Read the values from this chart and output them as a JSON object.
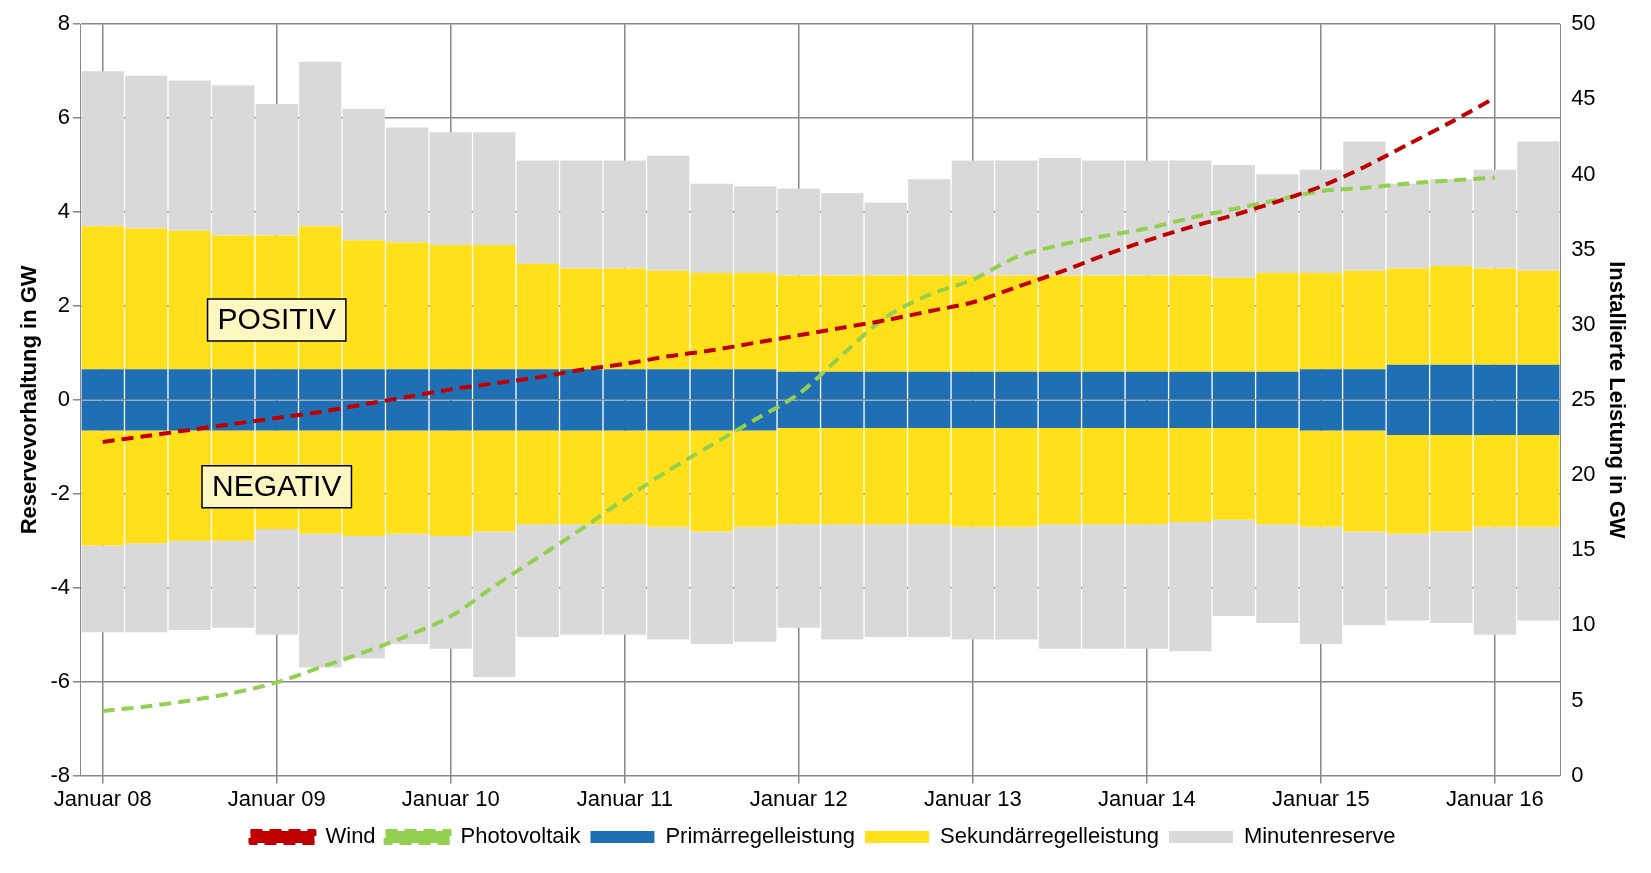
{
  "chart_data": {
    "type": "bar",
    "stacked": true,
    "xlabel": null,
    "ylabel": "Reservevorhaltung in GW",
    "y2label": "Installierte Leistung in GW",
    "categories": [
      "Januar 08",
      null,
      null,
      null,
      "Januar 09",
      null,
      null,
      null,
      "Januar 10",
      null,
      null,
      null,
      "Januar 11",
      null,
      null,
      null,
      "Januar 12",
      null,
      null,
      null,
      "Januar 13",
      null,
      null,
      null,
      "Januar 14",
      null,
      null,
      null,
      "Januar 15",
      null,
      null,
      null,
      "Januar 16",
      null
    ],
    "series": [
      {
        "name": "Primärregelleistung",
        "color": "#1f6fb4",
        "values": [
          0.65,
          0.65,
          0.65,
          0.65,
          0.65,
          0.65,
          0.65,
          0.65,
          0.65,
          0.65,
          0.65,
          0.65,
          0.65,
          0.65,
          0.65,
          0.65,
          0.6,
          0.6,
          0.6,
          0.6,
          0.6,
          0.6,
          0.6,
          0.6,
          0.6,
          0.6,
          0.6,
          0.6,
          0.65,
          0.65,
          0.75,
          0.75,
          0.75,
          0.75
        ]
      },
      {
        "name": "Sekundärregelleistung",
        "color": "#ffe01a",
        "values": [
          3.05,
          3.0,
          2.95,
          2.85,
          2.85,
          3.05,
          2.75,
          2.7,
          2.65,
          2.65,
          2.25,
          2.15,
          2.15,
          2.1,
          2.05,
          2.05,
          2.05,
          2.05,
          2.05,
          2.05,
          2.05,
          2.05,
          2.05,
          2.05,
          2.05,
          2.05,
          2.0,
          2.1,
          2.05,
          2.1,
          2.05,
          2.1,
          2.05,
          2.0
        ]
      },
      {
        "name": "Minutenreserve",
        "color": "#d9d9d9",
        "values": [
          3.3,
          3.25,
          3.2,
          3.2,
          2.8,
          3.5,
          2.8,
          2.45,
          2.4,
          2.4,
          2.2,
          2.3,
          2.3,
          2.45,
          1.9,
          1.85,
          1.85,
          1.75,
          1.55,
          2.05,
          2.45,
          2.45,
          2.5,
          2.45,
          2.45,
          2.45,
          2.4,
          2.1,
          2.2,
          2.75,
          1.8,
          1.85,
          2.1,
          2.75
        ]
      },
      {
        "color": "#1f6fb4",
        "values": [
          -0.65,
          -0.65,
          -0.65,
          -0.65,
          -0.65,
          -0.65,
          -0.65,
          -0.65,
          -0.65,
          -0.65,
          -0.65,
          -0.65,
          -0.65,
          -0.65,
          -0.65,
          -0.65,
          -0.6,
          -0.6,
          -0.6,
          -0.6,
          -0.6,
          -0.6,
          -0.6,
          -0.6,
          -0.6,
          -0.6,
          -0.6,
          -0.6,
          -0.65,
          -0.65,
          -0.75,
          -0.75,
          -0.75,
          -0.75
        ]
      },
      {
        "color": "#ffe01a",
        "values": [
          -2.45,
          -2.4,
          -2.35,
          -2.35,
          -2.1,
          -2.2,
          -2.25,
          -2.2,
          -2.25,
          -2.15,
          -2.0,
          -2.0,
          -2.0,
          -2.05,
          -2.15,
          -2.05,
          -2.05,
          -2.05,
          -2.05,
          -2.05,
          -2.1,
          -2.1,
          -2.05,
          -2.05,
          -2.05,
          -2.0,
          -1.95,
          -2.05,
          -2.05,
          -2.15,
          -2.1,
          -2.05,
          -1.95,
          -1.95
        ]
      },
      {
        "color": "#d9d9d9",
        "values": [
          -1.85,
          -1.9,
          -1.9,
          -1.85,
          -2.25,
          -2.85,
          -2.6,
          -2.35,
          -2.4,
          -3.1,
          -2.4,
          -2.35,
          -2.35,
          -2.4,
          -2.4,
          -2.45,
          -2.2,
          -2.45,
          -2.4,
          -2.4,
          -2.4,
          -2.4,
          -2.65,
          -2.65,
          -2.65,
          -2.75,
          -2.05,
          -2.1,
          -2.5,
          -2.0,
          -1.85,
          -1.95,
          -2.3,
          -2.0
        ]
      },
      {
        "name": "Wind",
        "type": "line",
        "axis": "y2",
        "color": "#c00000",
        "line_style": "dashed",
        "values": [
          22.2,
          22.6,
          23.0,
          23.4,
          23.8,
          24.2,
          24.7,
          25.2,
          25.7,
          26.1,
          26.5,
          27.0,
          27.4,
          27.9,
          28.3,
          28.8,
          29.3,
          29.8,
          30.3,
          30.9,
          31.5,
          32.5,
          33.5,
          34.6,
          35.6,
          36.5,
          37.3,
          38.2,
          39.2,
          40.5,
          42.0,
          43.5,
          45.1,
          null
        ]
      },
      {
        "name": "Photovoltaik",
        "type": "line",
        "axis": "y2",
        "color": "#92d050",
        "line_style": "dashed",
        "values": [
          4.3,
          4.6,
          5.0,
          5.5,
          6.2,
          7.2,
          8.2,
          9.3,
          10.6,
          12.6,
          14.5,
          16.4,
          18.4,
          20.3,
          22.0,
          23.7,
          25.4,
          28.0,
          30.5,
          32.0,
          33.0,
          34.5,
          35.3,
          35.9,
          36.4,
          37.1,
          37.7,
          38.3,
          38.9,
          39.1,
          39.4,
          39.6,
          39.8,
          null
        ]
      }
    ],
    "ylim": [
      -8,
      8
    ],
    "yticks": [
      -8,
      -6,
      -4,
      -2,
      0,
      2,
      4,
      6,
      8
    ],
    "y2lim": [
      0,
      50
    ],
    "y2ticks": [
      0,
      5,
      10,
      15,
      20,
      25,
      30,
      35,
      40,
      45,
      50
    ],
    "annotations": [
      "POSITIV",
      "NEGATIV"
    ],
    "grid": true,
    "legend": "bottom",
    "marker": "none"
  }
}
